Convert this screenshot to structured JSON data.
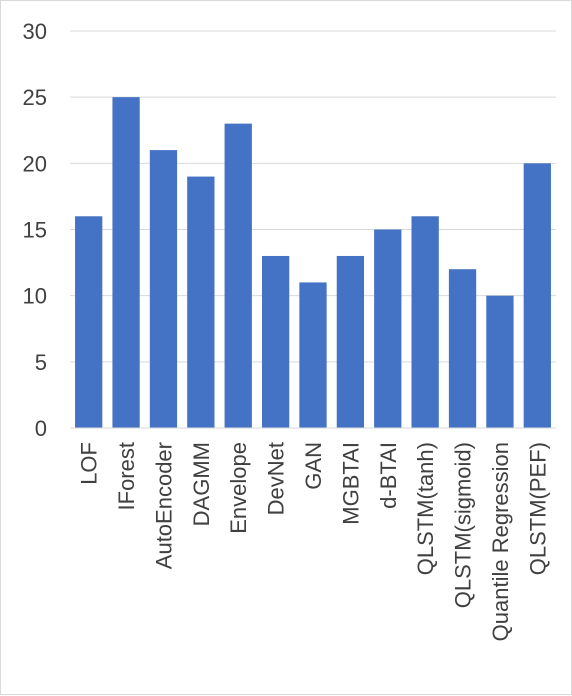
{
  "colors": {
    "bar": "#4472c4",
    "gridline": "#d9d9d9",
    "axis_line": "#d9d9d9",
    "text": "#404040",
    "border": "#d9d9d9"
  },
  "chart_data": {
    "type": "bar",
    "title": "",
    "xlabel": "",
    "ylabel": "",
    "categories": [
      "LOF",
      "IForest",
      "AutoEncoder",
      "DAGMM",
      "Envelope",
      "DevNet",
      "GAN",
      "MGBTAI",
      "d-BTAI",
      "QLSTM(tanh)",
      "QLSTM(sigmoid)",
      "Quantile Regression",
      "QLSTM(PEF)"
    ],
    "values": [
      16,
      25,
      21,
      19,
      23,
      13,
      11,
      13,
      15,
      16,
      12,
      10,
      20
    ],
    "ylim": [
      0,
      30
    ],
    "yticks": [
      "0",
      "5",
      "10",
      "15",
      "20",
      "25",
      "30"
    ],
    "grid": true,
    "legend": "none"
  }
}
